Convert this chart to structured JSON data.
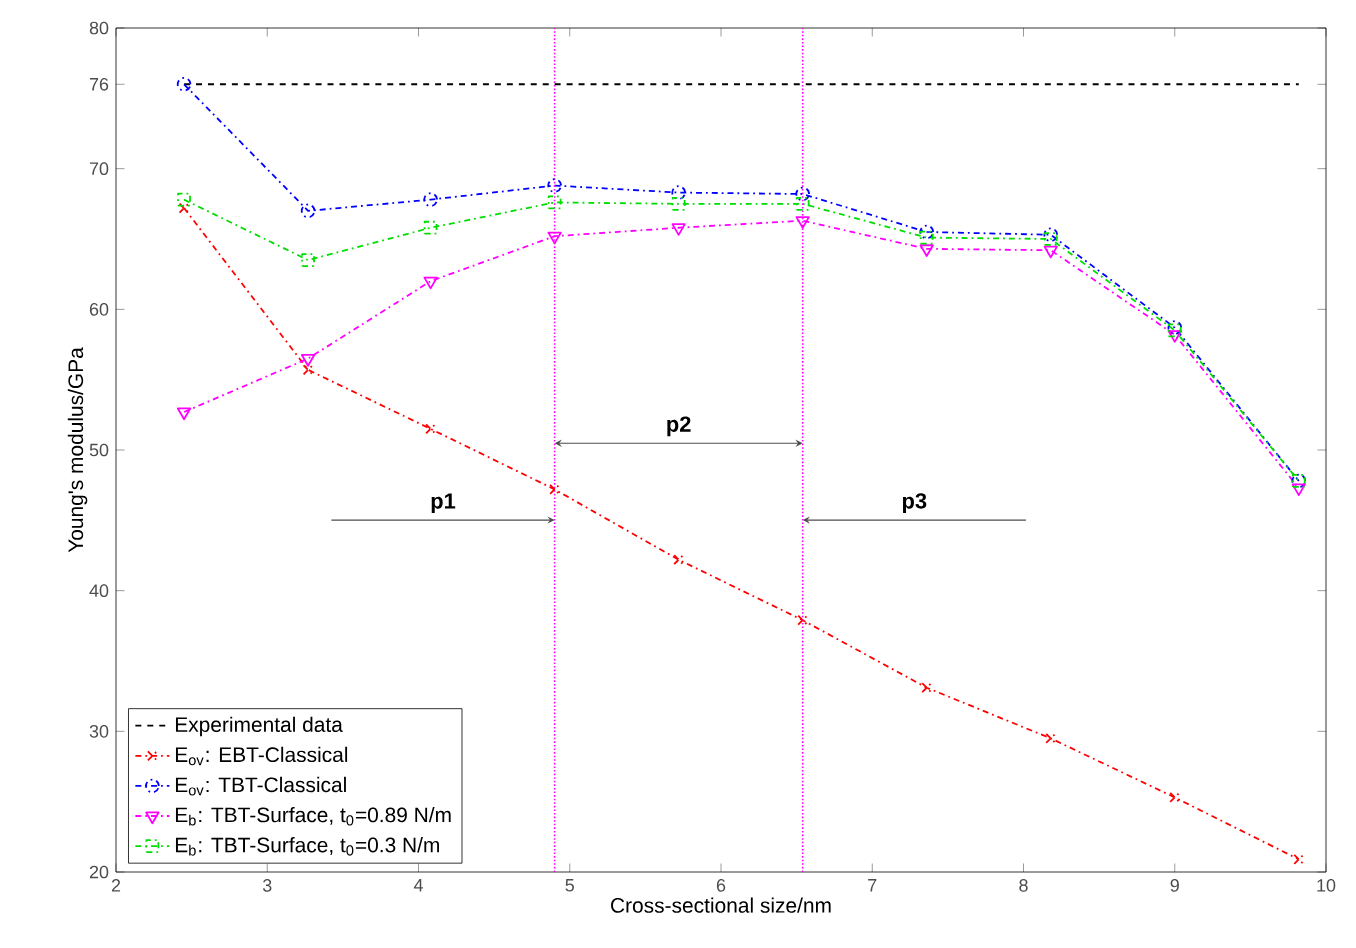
{
  "chart_data": {
    "type": "line",
    "xlabel": "Cross-sectional size/nm",
    "ylabel": "Young's modulus/GPa",
    "x": [
      2.45,
      3.27,
      4.08,
      4.9,
      5.72,
      6.54,
      7.36,
      8.18,
      9.0,
      9.82
    ],
    "series": [
      {
        "name": "Experimental data",
        "color": "#000000",
        "x": [
          2.45,
          9.82
        ],
        "values": [
          76,
          76
        ],
        "line_style": "dashed",
        "marker": "none"
      },
      {
        "name": "E$_{ov}$: EBT-Classical",
        "color": "#ff0000",
        "values": [
          67.2,
          55.7,
          51.5,
          47.2,
          42.2,
          37.9,
          33.1,
          29.5,
          25.3,
          20.9
        ],
        "line_style": "dashdot",
        "marker": "cross"
      },
      {
        "name": "E$_{ov}$: TBT-Classical",
        "color": "#0000ff",
        "values": [
          76,
          67,
          67.8,
          68.8,
          68.3,
          68.2,
          65.5,
          65.3,
          58.7,
          47.8
        ],
        "line_style": "dashdot",
        "marker": "circle"
      },
      {
        "name": "E$_{b}$: TBT-Surface, t$_{0}$=0.89 N/m",
        "color": "#ff00ff",
        "values": [
          52.7,
          56.5,
          62,
          65.2,
          65.8,
          66.3,
          64.3,
          64.2,
          58.2,
          47.3
        ],
        "line_style": "dashdot",
        "marker": "triangle"
      },
      {
        "name": "E$_{b}$: TBT-Surface, t$_{0}$=0.3 N/m",
        "color": "#00dd00",
        "values": [
          67.8,
          63.5,
          65.8,
          67.6,
          67.5,
          67.5,
          65.1,
          65,
          58.5,
          47.8
        ],
        "line_style": "dashdot",
        "marker": "square"
      }
    ],
    "xlim": [
      2,
      10
    ],
    "ylim": [
      20,
      80
    ],
    "xticks": [
      2,
      3,
      4,
      5,
      6,
      7,
      8,
      9,
      10
    ],
    "yticks": [
      20,
      30,
      40,
      50,
      60,
      70,
      76,
      80
    ],
    "ref_lines": [
      {
        "axis": "x",
        "value": 4.9,
        "color": "#ff00ff",
        "line_style": "dotted"
      },
      {
        "axis": "x",
        "value": 6.54,
        "color": "#ff00ff",
        "line_style": "dotted"
      }
    ],
    "annotations": [
      "p1",
      "p2",
      "p3"
    ],
    "legend": "bottom left",
    "grid": false
  }
}
